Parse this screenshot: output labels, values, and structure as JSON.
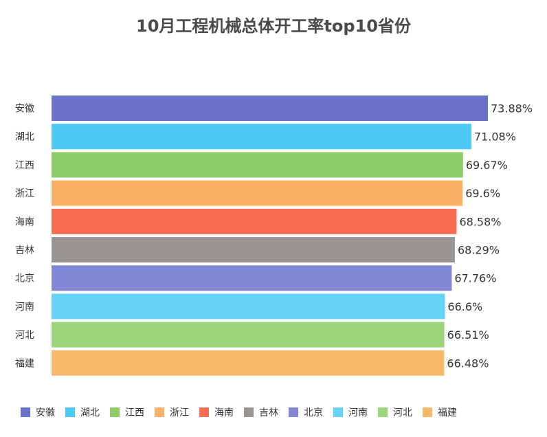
{
  "chart_data": {
    "type": "bar",
    "orientation": "horizontal",
    "title": "10月工程机械总体开工率top10省份",
    "categories": [
      "安徽",
      "湖北",
      "江西",
      "浙江",
      "海南",
      "吉林",
      "北京",
      "河南",
      "河北",
      "福建"
    ],
    "values": [
      73.88,
      71.08,
      69.67,
      69.6,
      68.58,
      68.29,
      67.76,
      66.6,
      66.51,
      66.48
    ],
    "value_labels": [
      "73.88%",
      "71.08%",
      "69.67%",
      "69.6%",
      "68.58%",
      "68.29%",
      "67.76%",
      "66.6%",
      "66.51%",
      "66.48%"
    ],
    "colors": [
      "#6b72c8",
      "#4dc9f6",
      "#8ccd66",
      "#f9b165",
      "#f96d53",
      "#999591",
      "#8187d4",
      "#64d3f6",
      "#9dd57d",
      "#f9b96c"
    ],
    "legend_position": "bottom",
    "grid": false
  }
}
